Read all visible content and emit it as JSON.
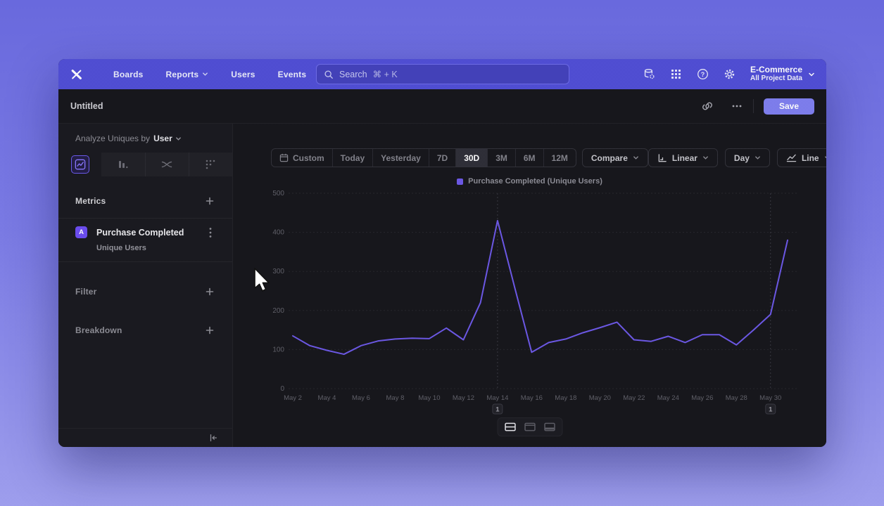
{
  "colors": {
    "accent_purple": "#6e5ae8",
    "nav_purple": "#5250d6",
    "save_button": "#8080f0",
    "background_top": "#6c6ce2",
    "background_bottom": "#a2a2f2"
  },
  "nav": {
    "items": [
      {
        "label": "Boards"
      },
      {
        "label": "Reports"
      },
      {
        "label": "Users"
      },
      {
        "label": "Events"
      }
    ],
    "search": {
      "placeholder": "Search",
      "shortcut": "⌘ + K"
    },
    "project": {
      "name": "E-Commerce",
      "subtitle": "All Project Data"
    }
  },
  "header": {
    "title": "Untitled",
    "save_label": "Save"
  },
  "sidebar": {
    "analyze_label": "Analyze Uniques by",
    "analyze_value": "User",
    "metrics_label": "Metrics",
    "filter_label": "Filter",
    "breakdown_label": "Breakdown",
    "metric": {
      "badge": "A",
      "name": "Purchase Completed",
      "subtitle": "Unique Users"
    }
  },
  "toolbar": {
    "date_ranges": [
      "Custom",
      "Today",
      "Yesterday",
      "7D",
      "30D",
      "3M",
      "6M",
      "12M"
    ],
    "selected_range": "30D",
    "compare_label": "Compare",
    "scale_label": "Linear",
    "interval_label": "Day",
    "chart_type_label": "Line"
  },
  "icons": {
    "nav": [
      "data-icon",
      "apps-grid-icon",
      "help-icon",
      "settings-gear-icon"
    ],
    "title_row": [
      "link-icon",
      "more-ellipsis-icon"
    ],
    "sidebar_tabs": [
      "insights-chart-icon",
      "funnel-bars-icon",
      "flows-icon",
      "retention-dots-icon"
    ],
    "footer": [
      "layout-split-icon",
      "layout-chart-icon",
      "layout-table-icon"
    ],
    "misc": [
      "search-icon",
      "calendar-icon",
      "axis-icon",
      "line-chart-icon",
      "collapse-sidebar-icon"
    ]
  },
  "chart_data": {
    "type": "line",
    "legend": [
      {
        "label": "Purchase Completed (Unique Users)",
        "color": "#6e5ae8"
      }
    ],
    "x": [
      "May 2",
      "May 3",
      "May 4",
      "May 5",
      "May 6",
      "May 7",
      "May 8",
      "May 9",
      "May 10",
      "May 11",
      "May 12",
      "May 13",
      "May 14",
      "May 15",
      "May 16",
      "May 17",
      "May 18",
      "May 19",
      "May 20",
      "May 21",
      "May 22",
      "May 23",
      "May 24",
      "May 25",
      "May 26",
      "May 27",
      "May 28",
      "May 29",
      "May 30",
      "May 31"
    ],
    "series": [
      {
        "name": "Purchase Completed (Unique Users)",
        "color": "#6e5ae8",
        "values": [
          135,
          110,
          98,
          88,
          110,
          122,
          127,
          129,
          128,
          155,
          125,
          220,
          430,
          260,
          93,
          118,
          127,
          143,
          156,
          170,
          125,
          121,
          134,
          118,
          138,
          138,
          112,
          150,
          190,
          380
        ]
      }
    ],
    "ylim": [
      0,
      500
    ],
    "yticks": [
      0,
      100,
      200,
      300,
      400,
      500
    ],
    "x_tick_every": 2,
    "grid": "dashed",
    "legend_position": "top-center",
    "annotations": [
      {
        "x_label": "May 14",
        "count": "1"
      },
      {
        "x_label": "May 30",
        "count": "1"
      }
    ]
  }
}
